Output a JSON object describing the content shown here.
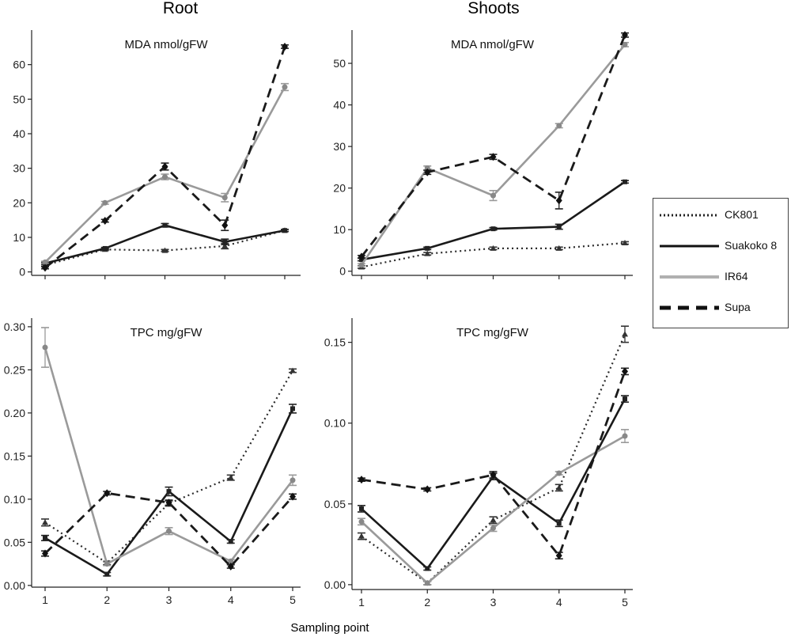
{
  "figure": {
    "column_titles": [
      "Root",
      "Shoots"
    ],
    "xlabel": "Sampling point"
  },
  "legend": [
    {
      "name": "CK801",
      "color": "#2a2a2a",
      "style": "dotted"
    },
    {
      "name": "Suakoko 8",
      "color": "#1a1a1a",
      "style": "solid"
    },
    {
      "name": "IR64",
      "color": "#a8a8a8",
      "style": "solid-light"
    },
    {
      "name": "Supa",
      "color": "#1a1a1a",
      "style": "dashed"
    }
  ],
  "chart_data": [
    {
      "type": "line",
      "panel": "Root",
      "title": "MDA nmol/gFW",
      "x": [
        1,
        2,
        3,
        4,
        5
      ],
      "ylim": [
        -1,
        70
      ],
      "yticks": [
        0,
        10,
        20,
        30,
        40,
        50,
        60
      ],
      "series": [
        {
          "name": "CK801",
          "values": [
            2.0,
            6.5,
            6.2,
            7.5,
            12.0
          ],
          "errors": [
            0.3,
            0.3,
            0.3,
            0.8,
            0.3
          ]
        },
        {
          "name": "Suakoko 8",
          "values": [
            2.5,
            6.8,
            13.5,
            8.7,
            12.0
          ],
          "errors": [
            0.3,
            0.3,
            0.5,
            0.8,
            0.3
          ]
        },
        {
          "name": "IR64",
          "values": [
            2.8,
            20.0,
            27.5,
            21.5,
            53.5
          ],
          "errors": [
            0.3,
            0.4,
            0.8,
            1.2,
            1.0
          ]
        },
        {
          "name": "Supa",
          "values": [
            1.2,
            14.8,
            30.5,
            13.5,
            65.2
          ],
          "errors": [
            0.3,
            0.4,
            1.0,
            1.5,
            0.5
          ]
        }
      ]
    },
    {
      "type": "line",
      "panel": "Shoots",
      "title": "MDA nmol/gFW",
      "x": [
        1,
        2,
        3,
        4,
        5
      ],
      "ylim": [
        -1,
        58
      ],
      "yticks": [
        0,
        10,
        20,
        30,
        40,
        50
      ],
      "series": [
        {
          "name": "CK801",
          "values": [
            1.0,
            4.2,
            5.5,
            5.5,
            6.8
          ],
          "errors": [
            0.3,
            0.3,
            0.3,
            0.3,
            0.3
          ]
        },
        {
          "name": "Suakoko 8",
          "values": [
            2.8,
            5.5,
            10.2,
            10.7,
            21.5
          ],
          "errors": [
            0.3,
            0.3,
            0.3,
            0.6,
            0.3
          ]
        },
        {
          "name": "IR64",
          "values": [
            1.5,
            24.8,
            18.2,
            35.0,
            54.5
          ],
          "errors": [
            0.3,
            0.5,
            1.2,
            0.5,
            0.5
          ]
        },
        {
          "name": "Supa",
          "values": [
            3.5,
            23.8,
            27.5,
            17.0,
            56.8
          ],
          "errors": [
            0.3,
            0.5,
            0.6,
            2.0,
            0.5
          ]
        }
      ]
    },
    {
      "type": "line",
      "panel": "Root",
      "title": "TPC mg/gFW",
      "x": [
        1,
        2,
        3,
        4,
        5
      ],
      "ylim": [
        -0.002,
        0.31
      ],
      "yticks": [
        0.0,
        0.05,
        0.1,
        0.15,
        0.2,
        0.25,
        0.3
      ],
      "yticklabels": [
        "0.00",
        "0.05",
        "0.10",
        "0.15",
        "0.20",
        "0.25",
        "0.30"
      ],
      "series": [
        {
          "name": "CK801",
          "values": [
            0.073,
            0.026,
            0.095,
            0.125,
            0.249
          ],
          "errors": [
            0.004,
            0.002,
            0.003,
            0.003,
            0.002
          ]
        },
        {
          "name": "Suakoko 8",
          "values": [
            0.055,
            0.013,
            0.109,
            0.051,
            0.205
          ],
          "errors": [
            0.003,
            0.002,
            0.005,
            0.002,
            0.005
          ]
        },
        {
          "name": "IR64",
          "values": [
            0.276,
            0.025,
            0.063,
            0.028,
            0.122
          ],
          "errors": [
            0.023,
            0.002,
            0.004,
            0.002,
            0.006
          ]
        },
        {
          "name": "Supa",
          "values": [
            0.037,
            0.107,
            0.096,
            0.022,
            0.103
          ],
          "errors": [
            0.003,
            0.002,
            0.003,
            0.002,
            0.003
          ]
        }
      ]
    },
    {
      "type": "line",
      "panel": "Shoots",
      "title": "TPC mg/gFW",
      "x": [
        1,
        2,
        3,
        4,
        5
      ],
      "ylim": [
        -0.003,
        0.165
      ],
      "yticks": [
        0.0,
        0.05,
        0.1,
        0.15
      ],
      "yticklabels": [
        "0.00",
        "0.05",
        "0.10",
        "0.15"
      ],
      "series": [
        {
          "name": "CK801",
          "values": [
            0.03,
            0.001,
            0.04,
            0.06,
            0.155
          ],
          "errors": [
            0.002,
            0.001,
            0.002,
            0.002,
            0.005
          ]
        },
        {
          "name": "Suakoko 8",
          "values": [
            0.047,
            0.01,
            0.067,
            0.038,
            0.115
          ],
          "errors": [
            0.002,
            0.001,
            0.002,
            0.002,
            0.002
          ]
        },
        {
          "name": "IR64",
          "values": [
            0.039,
            0.001,
            0.035,
            0.069,
            0.092
          ],
          "errors": [
            0.002,
            0.001,
            0.002,
            0.001,
            0.004
          ]
        },
        {
          "name": "Supa",
          "values": [
            0.065,
            0.059,
            0.068,
            0.018,
            0.132
          ],
          "errors": [
            0.001,
            0.001,
            0.002,
            0.002,
            0.002
          ]
        }
      ]
    }
  ]
}
